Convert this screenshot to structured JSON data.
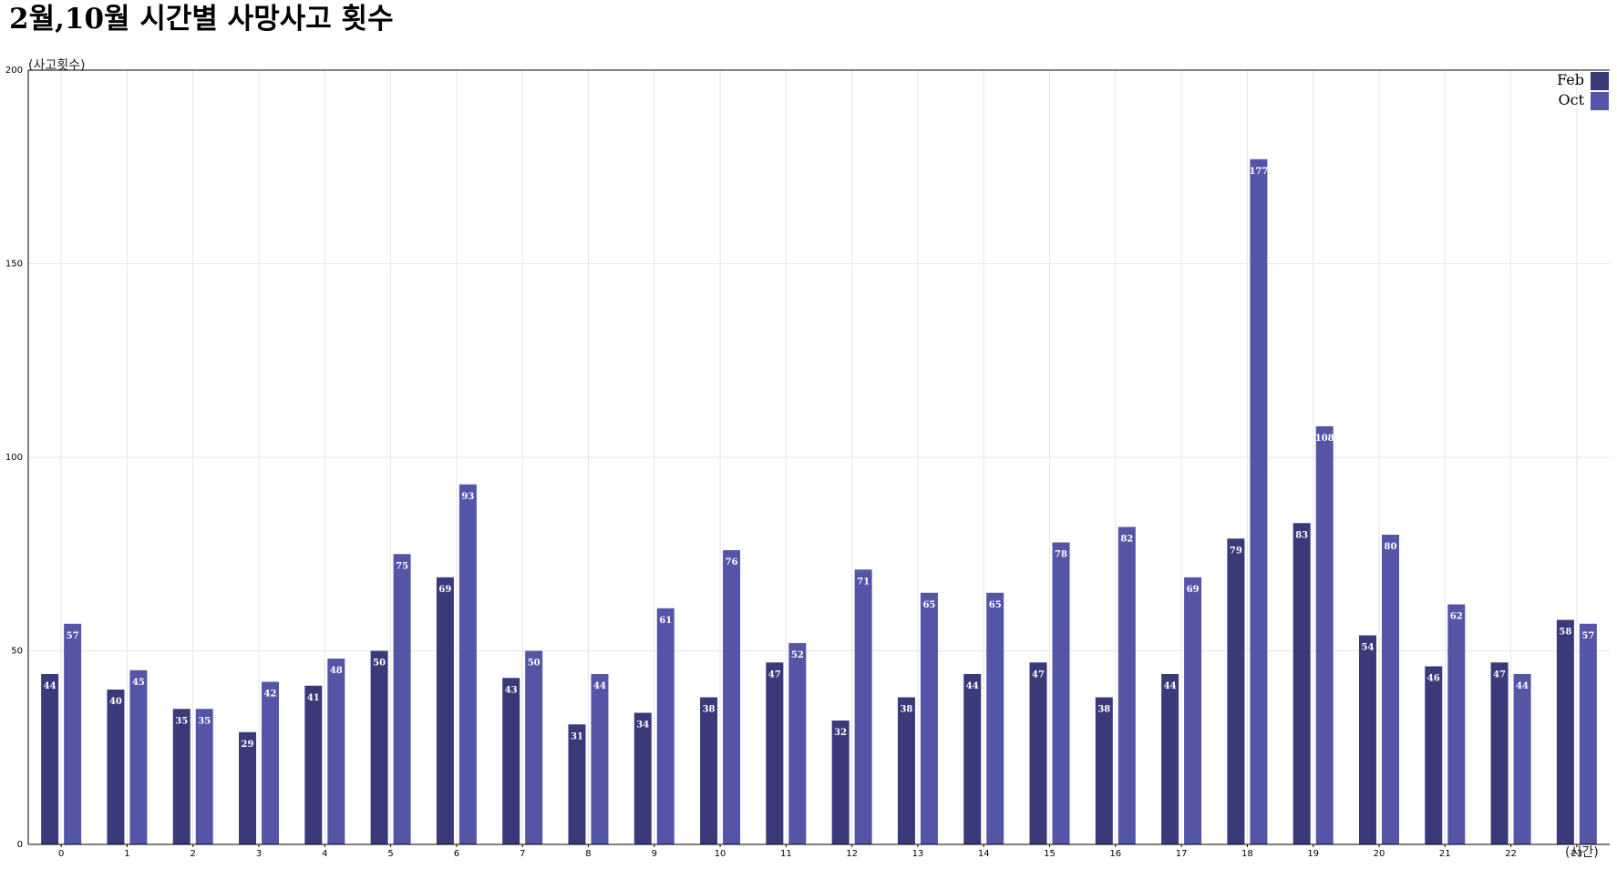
{
  "colors": {
    "feb": "#3a3a7a",
    "oct": "#5555a8",
    "grid": "#e6e6e6",
    "axis": "#000000"
  },
  "chart_data": {
    "type": "bar",
    "title": "2월,10월 시간별 사망사고 횟수",
    "xlabel": "(시간)",
    "ylabel": "(사고횟수)",
    "ylim": [
      0,
      200
    ],
    "yticks": [
      0,
      50,
      100,
      150,
      200
    ],
    "grid": true,
    "legend_position": "top-right",
    "categories": [
      "0",
      "1",
      "2",
      "3",
      "4",
      "5",
      "6",
      "7",
      "8",
      "9",
      "10",
      "11",
      "12",
      "13",
      "14",
      "15",
      "16",
      "17",
      "18",
      "19",
      "20",
      "21",
      "22",
      "23"
    ],
    "series": [
      {
        "name": "Feb",
        "color": "#3a3a7a",
        "values": [
          44,
          40,
          35,
          29,
          41,
          50,
          69,
          43,
          31,
          34,
          38,
          47,
          32,
          38,
          44,
          47,
          38,
          44,
          79,
          83,
          54,
          46,
          47,
          58
        ]
      },
      {
        "name": "Oct",
        "color": "#5555a8",
        "values": [
          57,
          45,
          35,
          42,
          48,
          75,
          93,
          50,
          44,
          61,
          76,
          52,
          71,
          65,
          65,
          78,
          82,
          69,
          177,
          108,
          80,
          62,
          44,
          57
        ]
      }
    ]
  }
}
